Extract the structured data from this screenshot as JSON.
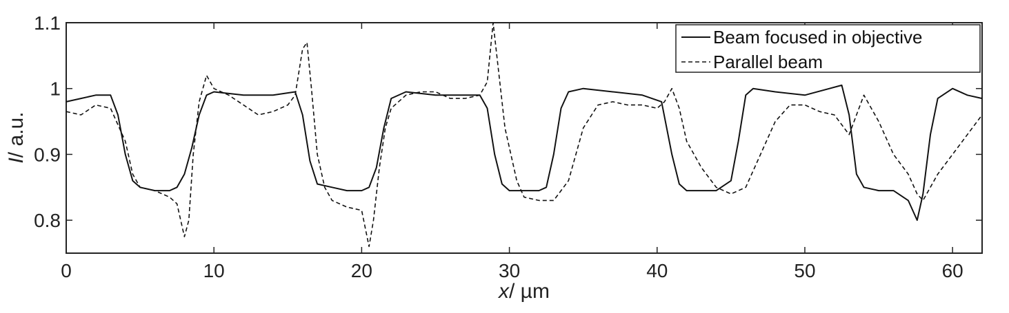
{
  "chart_data": {
    "type": "line",
    "xlabel_var": "x",
    "xlabel_unit": "/ µm",
    "ylabel_var": "I",
    "ylabel_unit": "/ a.u.",
    "xlim": [
      0,
      62
    ],
    "ylim": [
      0.75,
      1.1
    ],
    "xticks": [
      0,
      10,
      20,
      30,
      40,
      50,
      60
    ],
    "yticks": [
      0.8,
      0.9,
      1,
      1.1
    ],
    "ytick_labels": [
      "0.8",
      "0.9",
      "1",
      "1.1"
    ],
    "grid": false,
    "legend_position": "top-right",
    "series": [
      {
        "name": "Beam focused in objective",
        "style": "solid",
        "color": "#111111",
        "x": [
          0,
          1,
          2,
          3,
          3.5,
          4,
          4.5,
          5,
          6,
          7,
          7.5,
          8,
          8.5,
          9,
          9.5,
          10,
          12,
          14,
          15.5,
          16,
          16.5,
          17,
          18,
          19,
          20,
          20.5,
          21,
          21.5,
          22,
          23,
          25,
          27,
          28,
          28.5,
          29,
          29.5,
          30,
          31,
          32,
          32.5,
          33,
          33.5,
          34,
          35,
          37,
          39,
          40.3,
          41,
          41.5,
          42,
          43,
          44,
          45,
          45.5,
          46,
          46.5,
          48,
          50,
          52.5,
          53,
          53.5,
          54,
          55,
          56,
          57,
          57.6,
          58,
          58.5,
          59,
          60,
          61,
          62
        ],
        "y": [
          0.98,
          0.985,
          0.99,
          0.99,
          0.96,
          0.9,
          0.86,
          0.85,
          0.845,
          0.845,
          0.85,
          0.87,
          0.91,
          0.96,
          0.99,
          0.995,
          0.99,
          0.99,
          0.995,
          0.96,
          0.89,
          0.855,
          0.85,
          0.845,
          0.845,
          0.85,
          0.88,
          0.94,
          0.985,
          0.995,
          0.99,
          0.99,
          0.99,
          0.97,
          0.9,
          0.855,
          0.845,
          0.845,
          0.845,
          0.85,
          0.9,
          0.97,
          0.995,
          1.0,
          0.995,
          0.99,
          0.98,
          0.9,
          0.855,
          0.845,
          0.845,
          0.845,
          0.86,
          0.92,
          0.99,
          1.0,
          0.995,
          0.99,
          1.005,
          0.96,
          0.87,
          0.85,
          0.845,
          0.845,
          0.83,
          0.8,
          0.84,
          0.93,
          0.985,
          1.0,
          0.99,
          0.985
        ]
      },
      {
        "name": "Parallel beam",
        "style": "dashed",
        "color": "#111111",
        "x": [
          0,
          1,
          2,
          3,
          4,
          4.5,
          5,
          6,
          7,
          7.5,
          8,
          8.3,
          8.6,
          9,
          9.5,
          10,
          11,
          12,
          13,
          14,
          15,
          15.5,
          16,
          16.3,
          16.6,
          17,
          17.5,
          18,
          19,
          20,
          20.5,
          20.8,
          21.2,
          21.6,
          22,
          23,
          24,
          25,
          26,
          27,
          28,
          28.5,
          28.9,
          29.3,
          29.7,
          30.5,
          31,
          32,
          33,
          34,
          35,
          36,
          37,
          38,
          39,
          40,
          40.5,
          41,
          41.5,
          42,
          43,
          44,
          45,
          46,
          47,
          48,
          49,
          50,
          51,
          52,
          53,
          54,
          55,
          56,
          57,
          57.6,
          58,
          59,
          60,
          61,
          62
        ],
        "y": [
          0.965,
          0.96,
          0.975,
          0.97,
          0.92,
          0.87,
          0.85,
          0.845,
          0.835,
          0.825,
          0.775,
          0.8,
          0.9,
          0.98,
          1.02,
          1.0,
          0.99,
          0.975,
          0.96,
          0.965,
          0.975,
          0.99,
          1.06,
          1.07,
          1.0,
          0.9,
          0.85,
          0.83,
          0.82,
          0.815,
          0.76,
          0.8,
          0.88,
          0.94,
          0.97,
          0.99,
          0.995,
          0.995,
          0.985,
          0.985,
          0.99,
          1.01,
          1.1,
          1.02,
          0.94,
          0.86,
          0.835,
          0.83,
          0.83,
          0.86,
          0.94,
          0.975,
          0.98,
          0.975,
          0.975,
          0.97,
          0.98,
          1.0,
          0.97,
          0.92,
          0.88,
          0.85,
          0.84,
          0.85,
          0.9,
          0.95,
          0.975,
          0.975,
          0.965,
          0.96,
          0.93,
          0.99,
          0.95,
          0.9,
          0.87,
          0.84,
          0.83,
          0.87,
          0.9,
          0.93,
          0.96
        ]
      }
    ]
  }
}
